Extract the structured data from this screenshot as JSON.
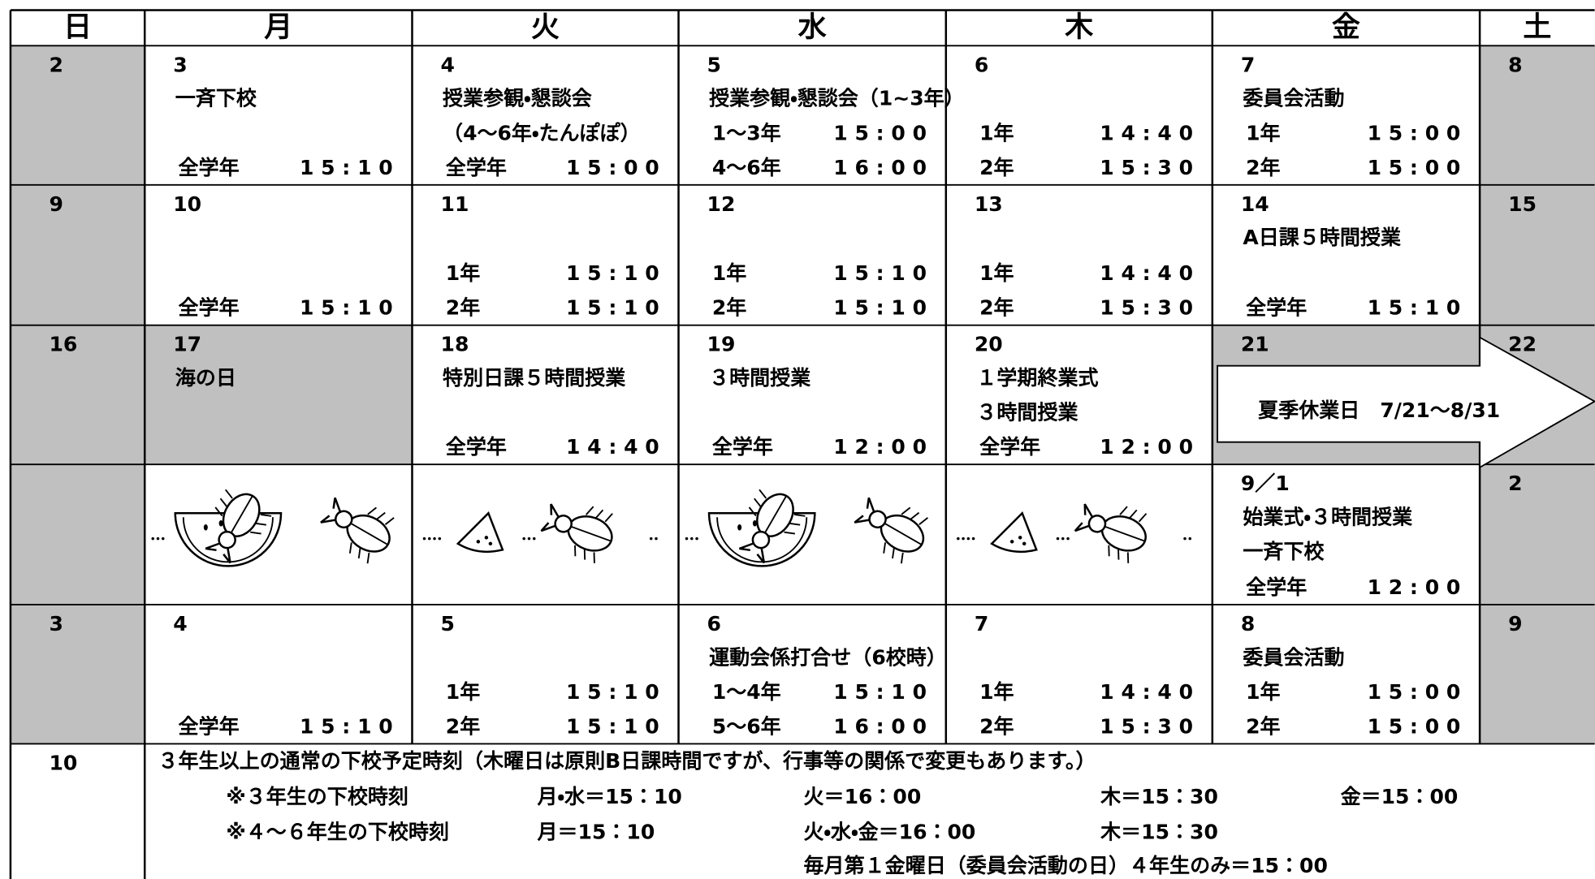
{
  "header": {
    "days": [
      "日",
      "月",
      "火",
      "水",
      "木",
      "金",
      "土"
    ]
  },
  "weeks": [
    {
      "cells": [
        {
          "date": "2",
          "holiday": true
        },
        {
          "date": "3",
          "events": [
            "一斉下校"
          ],
          "times": [
            {
              "grade": "全学年",
              "time": "15:10"
            }
          ]
        },
        {
          "date": "4",
          "events": [
            "授業参観・懇談会",
            "（4～6年・たんぽぽ）"
          ],
          "times": [
            {
              "grade": "全学年",
              "time": "15:00"
            }
          ]
        },
        {
          "date": "5",
          "events": [
            "授業参観・懇談会（1~3年）"
          ],
          "times": [
            {
              "grade": "1～3年",
              "time": "15:00"
            },
            {
              "grade": "4～6年",
              "time": "16:00"
            }
          ]
        },
        {
          "date": "6",
          "times": [
            {
              "grade": "1年",
              "time": "14:40"
            },
            {
              "grade": "2年",
              "time": "15:30"
            }
          ]
        },
        {
          "date": "7",
          "events": [
            "委員会活動"
          ],
          "times": [
            {
              "grade": "1年",
              "time": "15:00"
            },
            {
              "grade": "2年",
              "time": "15:00"
            }
          ]
        },
        {
          "date": "8",
          "holiday": true
        }
      ]
    },
    {
      "cells": [
        {
          "date": "9",
          "holiday": true
        },
        {
          "date": "10",
          "times": [
            {
              "grade": "全学年",
              "time": "15:10"
            }
          ]
        },
        {
          "date": "11",
          "times": [
            {
              "grade": "1年",
              "time": "15:10"
            },
            {
              "grade": "2年",
              "time": "15:10"
            }
          ]
        },
        {
          "date": "12",
          "times": [
            {
              "grade": "1年",
              "time": "15:10"
            },
            {
              "grade": "2年",
              "time": "15:10"
            }
          ]
        },
        {
          "date": "13",
          "times": [
            {
              "grade": "1年",
              "time": "14:40"
            },
            {
              "grade": "2年",
              "time": "15:30"
            }
          ]
        },
        {
          "date": "14",
          "events": [
            "A日課５時間授業"
          ],
          "times": [
            {
              "grade": "全学年",
              "time": "15:10"
            }
          ]
        },
        {
          "date": "15",
          "holiday": true
        }
      ]
    },
    {
      "cells": [
        {
          "date": "16",
          "holiday": true
        },
        {
          "date": "17",
          "holiday": true,
          "events": [
            "海の日"
          ]
        },
        {
          "date": "18",
          "events": [
            "特別日課５時間授業"
          ],
          "times": [
            {
              "grade": "全学年",
              "time": "14:40"
            }
          ]
        },
        {
          "date": "19",
          "events": [
            "３時間授業"
          ],
          "times": [
            {
              "grade": "全学年",
              "time": "12:00"
            }
          ]
        },
        {
          "date": "20",
          "events": [
            "１学期終業式",
            "３時間授業"
          ],
          "times": [
            {
              "grade": "全学年",
              "time": "12:00"
            }
          ]
        },
        {
          "date": "21",
          "holiday": true
        },
        {
          "date": "22",
          "holiday": true
        }
      ],
      "banner": "夏季休業日　7/21～8/31"
    },
    {
      "cells": [
        {
          "holiday": true
        },
        {
          "illustration": true
        },
        {
          "illustration": true
        },
        {
          "illustration": true
        },
        {
          "illustration": true
        },
        {
          "date": "9／1",
          "events": [
            "始業式・３時間授業",
            "一斉下校"
          ],
          "times": [
            {
              "grade": "全学年",
              "time": "12:00"
            }
          ]
        },
        {
          "date": "2",
          "holiday": true
        }
      ]
    },
    {
      "cells": [
        {
          "date": "3",
          "holiday": true
        },
        {
          "date": "4",
          "times": [
            {
              "grade": "全学年",
              "time": "15:10"
            }
          ]
        },
        {
          "date": "5",
          "times": [
            {
              "grade": "1年",
              "time": "15:10"
            },
            {
              "grade": "2年",
              "time": "15:10"
            }
          ]
        },
        {
          "date": "6",
          "events": [
            "運動会係打合せ（6校時）"
          ],
          "times": [
            {
              "grade": "1～4年",
              "time": "15:10"
            },
            {
              "grade": "5～6年",
              "time": "16:00"
            }
          ]
        },
        {
          "date": "7",
          "times": [
            {
              "grade": "1年",
              "time": "14:40"
            },
            {
              "grade": "2年",
              "time": "15:30"
            }
          ]
        },
        {
          "date": "8",
          "events": [
            "委員会活動"
          ],
          "times": [
            {
              "grade": "1年",
              "time": "15:00"
            },
            {
              "grade": "2年",
              "time": "15:00"
            }
          ]
        },
        {
          "date": "9",
          "holiday": true
        }
      ]
    },
    {
      "cells": [
        {
          "date": "10"
        }
      ],
      "note": {
        "heading": "３年生以上の通常の下校予定時刻（木曜日は原則B日課時間ですが、行事等の関係で変更もあります。）",
        "lines": [
          [
            "※３年生の下校時刻",
            "月・水＝15：10",
            "火＝16：00",
            "木＝15：30",
            "金＝15：00"
          ],
          [
            "※４～６年生の下校時刻",
            "月＝15：10",
            "火・水・金＝16：00",
            "木＝15：30"
          ]
        ],
        "footer": "毎月第１金曜日（委員会活動の日）４年生のみ＝15：00"
      }
    }
  ]
}
